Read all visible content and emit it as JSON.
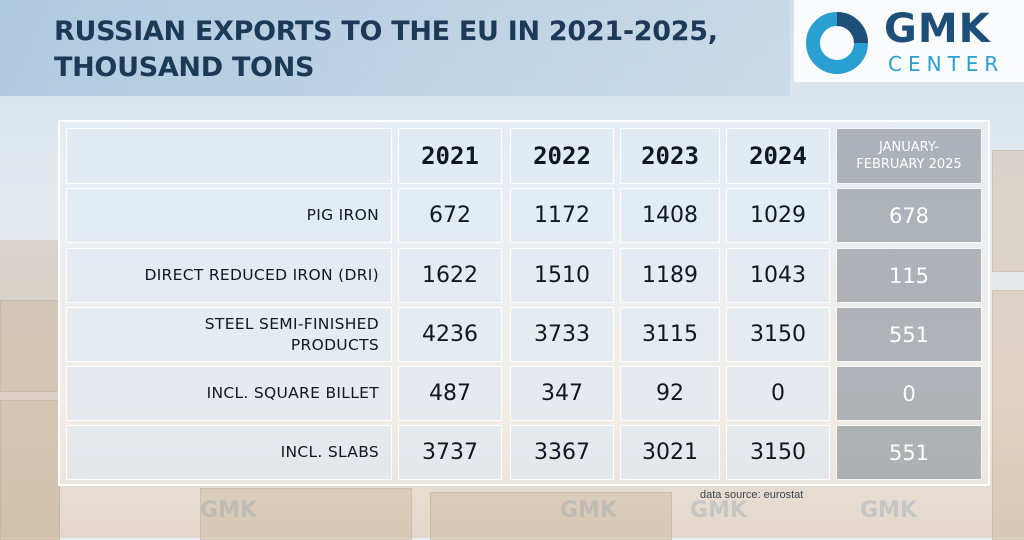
{
  "header": {
    "title_line1": "RUSSIAN EXPORTS TO THE EU IN 2021-2025,",
    "title_line2": "THOUSAND TONS"
  },
  "logo": {
    "name": "GMK",
    "sub": "CENTER"
  },
  "source": "data source: eurostat",
  "watermark": "GMK",
  "colors": {
    "title": "#1c3a58",
    "logo_blue": "#1d4f78",
    "logo_cyan": "#2a9fd2",
    "highlight_col": "#969ba2"
  },
  "chart_data": {
    "type": "table",
    "title": "RUSSIAN EXPORTS TO THE EU IN 2021-2025, THOUSAND TONS",
    "columns": [
      "2021",
      "2022",
      "2023",
      "2024",
      "JANUARY-\nFEBRUARY 2025"
    ],
    "rows": [
      {
        "label": "PIG IRON",
        "values": [
          "672",
          "1172",
          "1408",
          "1029",
          "678"
        ]
      },
      {
        "label": "DIRECT REDUCED IRON (DRI)",
        "values": [
          "1622",
          "1510",
          "1189",
          "1043",
          "115"
        ]
      },
      {
        "label": "STEEL SEMI-FINISHED\nPRODUCTS",
        "values": [
          "4236",
          "3733",
          "3115",
          "3150",
          "551"
        ]
      },
      {
        "label": "INCL. SQUARE BILLET",
        "values": [
          "487",
          "347",
          "92",
          "0",
          "0"
        ]
      },
      {
        "label": "INCL. SLABS",
        "values": [
          "3737",
          "3367",
          "3021",
          "3150",
          "551"
        ]
      }
    ]
  }
}
